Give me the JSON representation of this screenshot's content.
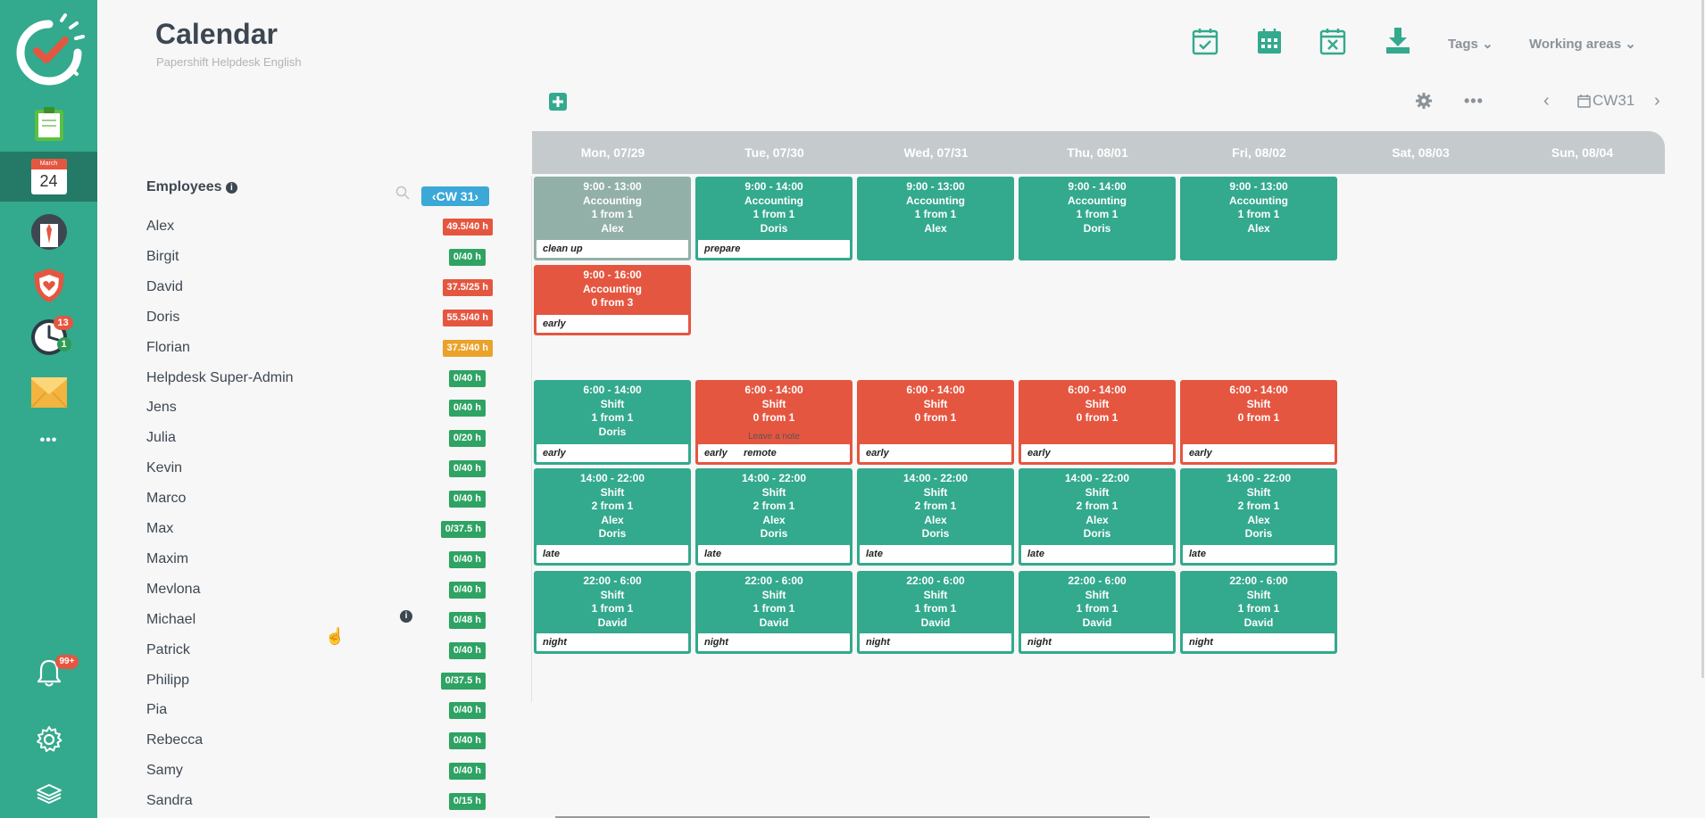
{
  "header": {
    "title": "Calendar",
    "subtitle": "Papershift Helpdesk English",
    "tags_label": "Tags",
    "working_areas_label": "Working areas"
  },
  "sidebar": {
    "calendar_month": "March",
    "calendar_day": "24",
    "clock_badge_red": "13",
    "clock_badge_green": "1",
    "bell_badge": "99+",
    "more_label": "•••"
  },
  "toolbar": {
    "week_label": "CW31"
  },
  "employees": {
    "heading": "Employees",
    "week_badge": "CW 31",
    "list": [
      {
        "name": "Alex",
        "hours": "49.5/40 h",
        "status": "red"
      },
      {
        "name": "Birgit",
        "hours": "0/40 h",
        "status": "green"
      },
      {
        "name": "David",
        "hours": "37.5/25 h",
        "status": "red"
      },
      {
        "name": "Doris",
        "hours": "55.5/40 h",
        "status": "red"
      },
      {
        "name": "Florian",
        "hours": "37.5/40 h",
        "status": "orange"
      },
      {
        "name": "Helpdesk Super-Admin",
        "hours": "0/40 h",
        "status": "green"
      },
      {
        "name": "Jens",
        "hours": "0/40 h",
        "status": "green"
      },
      {
        "name": "Julia",
        "hours": "0/20 h",
        "status": "green"
      },
      {
        "name": "Kevin",
        "hours": "0/40 h",
        "status": "green"
      },
      {
        "name": "Marco",
        "hours": "0/40 h",
        "status": "green"
      },
      {
        "name": "Max",
        "hours": "0/37.5 h",
        "status": "green"
      },
      {
        "name": "Maxim",
        "hours": "0/40 h",
        "status": "green"
      },
      {
        "name": "Mevlona",
        "hours": "0/40 h",
        "status": "green"
      },
      {
        "name": "Michael",
        "hours": "0/48 h",
        "status": "green"
      },
      {
        "name": "Patrick",
        "hours": "0/40 h",
        "status": "green"
      },
      {
        "name": "Philipp",
        "hours": "0/37.5 h",
        "status": "green"
      },
      {
        "name": "Pia",
        "hours": "0/40 h",
        "status": "green"
      },
      {
        "name": "Rebecca",
        "hours": "0/40 h",
        "status": "green"
      },
      {
        "name": "Samy",
        "hours": "0/40 h",
        "status": "green"
      },
      {
        "name": "Sandra",
        "hours": "0/15 h",
        "status": "green"
      }
    ]
  },
  "days": [
    "Mon, 07/29",
    "Tue, 07/30",
    "Wed, 07/31",
    "Thu, 08/01",
    "Fri, 08/02",
    "Sat, 08/03",
    "Sun, 08/04"
  ],
  "shifts": [
    {
      "day": 0,
      "row": "acc1",
      "color": "gray",
      "time": "9:00 - 13:00",
      "area": "Accounting",
      "count": "1 from 1",
      "people": [
        "Alex"
      ],
      "note": "clean up"
    },
    {
      "day": 1,
      "row": "acc1",
      "color": "green",
      "time": "9:00 - 14:00",
      "area": "Accounting",
      "count": "1 from 1",
      "people": [
        "Doris"
      ],
      "note": "prepare"
    },
    {
      "day": 2,
      "row": "acc1",
      "color": "green",
      "time": "9:00 - 13:00",
      "area": "Accounting",
      "count": "1 from 1",
      "people": [
        "Alex"
      ],
      "note": ""
    },
    {
      "day": 3,
      "row": "acc1",
      "color": "green",
      "time": "9:00 - 14:00",
      "area": "Accounting",
      "count": "1 from 1",
      "people": [
        "Doris"
      ],
      "note": ""
    },
    {
      "day": 4,
      "row": "acc1",
      "color": "green",
      "time": "9:00 - 13:00",
      "area": "Accounting",
      "count": "1 from 1",
      "people": [
        "Alex"
      ],
      "note": ""
    },
    {
      "day": 0,
      "row": "acc2",
      "color": "red",
      "time": "9:00 - 16:00",
      "area": "Accounting",
      "count": "0 from 3",
      "people": [],
      "note": "early"
    },
    {
      "day": 0,
      "row": "early",
      "color": "green",
      "time": "6:00 - 14:00",
      "area": "Shift",
      "count": "1 from 1",
      "people": [
        "Doris"
      ],
      "note": "early"
    },
    {
      "day": 1,
      "row": "early",
      "color": "red",
      "time": "6:00 - 14:00",
      "area": "Shift",
      "count": "0 from 1",
      "people": [],
      "note": "early      remote",
      "leave_note": "Leave a note"
    },
    {
      "day": 2,
      "row": "early",
      "color": "red",
      "time": "6:00 - 14:00",
      "area": "Shift",
      "count": "0 from 1",
      "people": [],
      "note": "early"
    },
    {
      "day": 3,
      "row": "early",
      "color": "red",
      "time": "6:00 - 14:00",
      "area": "Shift",
      "count": "0 from 1",
      "people": [],
      "note": "early"
    },
    {
      "day": 4,
      "row": "early",
      "color": "red",
      "time": "6:00 - 14:00",
      "area": "Shift",
      "count": "0 from 1",
      "people": [],
      "note": "early"
    },
    {
      "day": 0,
      "row": "late",
      "color": "green",
      "time": "14:00 - 22:00",
      "area": "Shift",
      "count": "2 from 1",
      "people": [
        "Alex",
        "Doris"
      ],
      "note": "late"
    },
    {
      "day": 1,
      "row": "late",
      "color": "green",
      "time": "14:00 - 22:00",
      "area": "Shift",
      "count": "2 from 1",
      "people": [
        "Alex",
        "Doris"
      ],
      "note": "late"
    },
    {
      "day": 2,
      "row": "late",
      "color": "green",
      "time": "14:00 - 22:00",
      "area": "Shift",
      "count": "2 from 1",
      "people": [
        "Alex",
        "Doris"
      ],
      "note": "late"
    },
    {
      "day": 3,
      "row": "late",
      "color": "green",
      "time": "14:00 - 22:00",
      "area": "Shift",
      "count": "2 from 1",
      "people": [
        "Alex",
        "Doris"
      ],
      "note": "late"
    },
    {
      "day": 4,
      "row": "late",
      "color": "green",
      "time": "14:00 - 22:00",
      "area": "Shift",
      "count": "2 from 1",
      "people": [
        "Alex",
        "Doris"
      ],
      "note": "late"
    },
    {
      "day": 0,
      "row": "night",
      "color": "green",
      "time": "22:00 - 6:00",
      "area": "Shift",
      "count": "1 from 1",
      "people": [
        "David"
      ],
      "note": "night"
    },
    {
      "day": 1,
      "row": "night",
      "color": "green",
      "time": "22:00 - 6:00",
      "area": "Shift",
      "count": "1 from 1",
      "people": [
        "David"
      ],
      "note": "night"
    },
    {
      "day": 2,
      "row": "night",
      "color": "green",
      "time": "22:00 - 6:00",
      "area": "Shift",
      "count": "1 from 1",
      "people": [
        "David"
      ],
      "note": "night"
    },
    {
      "day": 3,
      "row": "night",
      "color": "green",
      "time": "22:00 - 6:00",
      "area": "Shift",
      "count": "1 from 1",
      "people": [
        "David"
      ],
      "note": "night"
    },
    {
      "day": 4,
      "row": "night",
      "color": "green",
      "time": "22:00 - 6:00",
      "area": "Shift",
      "count": "1 from 1",
      "people": [
        "David"
      ],
      "note": "night"
    }
  ],
  "colors": {
    "brand": "#33a98d",
    "danger": "#e55640",
    "warning": "#eaa22a"
  }
}
